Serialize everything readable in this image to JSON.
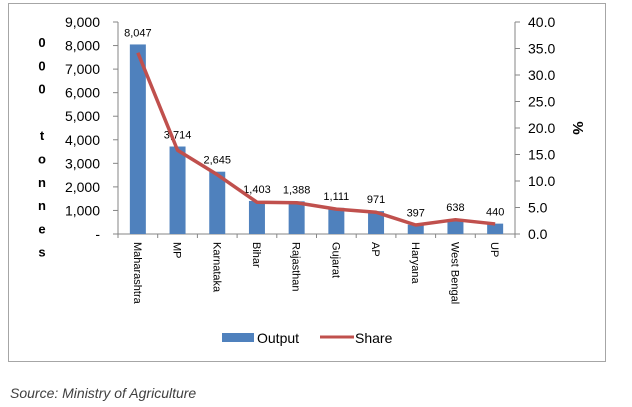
{
  "chart_data": {
    "type": "bar+line",
    "categories": [
      "Maharashtra",
      "MP",
      "Karnataka",
      "Bihar",
      "Rajasthan",
      "Gujarat",
      "AP",
      "Haryana",
      "West Bengal",
      "UP"
    ],
    "series": [
      {
        "name": "Output",
        "type": "bar",
        "axis": "left",
        "color": "#4f81bd",
        "values": [
          8047,
          3714,
          2645,
          1403,
          1388,
          1111,
          971,
          397,
          638,
          440
        ],
        "labels": [
          "8,047",
          "3,714",
          "2,645",
          "1,403",
          "1,388",
          "1,111",
          "971",
          "397",
          "638",
          "440"
        ]
      },
      {
        "name": "Share",
        "type": "line",
        "axis": "right",
        "color": "#c0504d",
        "values": [
          34.2,
          15.8,
          11.2,
          6.0,
          5.9,
          4.7,
          4.1,
          1.7,
          2.7,
          1.9
        ]
      }
    ],
    "left_axis": {
      "label_letters": [
        "0",
        "0",
        "0",
        "",
        "t",
        "o",
        "n",
        "n",
        "e",
        "s"
      ],
      "ylim": [
        0,
        9000
      ],
      "ticks": [
        0,
        1000,
        2000,
        3000,
        4000,
        5000,
        6000,
        7000,
        8000,
        9000
      ],
      "tick_labels": [
        "-",
        "1,000",
        "2,000",
        "3,000",
        "4,000",
        "5,000",
        "6,000",
        "7,000",
        "8,000",
        "9,000"
      ]
    },
    "right_axis": {
      "label": "%",
      "ylim": [
        0,
        40
      ],
      "ticks": [
        0,
        5,
        10,
        15,
        20,
        25,
        30,
        35,
        40
      ],
      "tick_labels": [
        "0.0",
        "5.0",
        "10.0",
        "15.0",
        "20.0",
        "25.0",
        "30.0",
        "35.0",
        "40.0"
      ]
    },
    "legend": {
      "placement": "bottom",
      "entries": [
        "Output",
        "Share"
      ]
    }
  },
  "source": "Source: Ministry of Agriculture"
}
